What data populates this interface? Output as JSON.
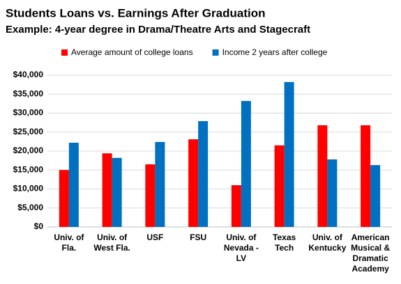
{
  "chart_data": {
    "type": "bar",
    "title": "Students Loans vs. Earnings After Graduation",
    "subtitle": "Example: 4-year degree in Drama/Theatre Arts and Stagecraft",
    "categories": [
      "Univ. of Fla.",
      "Univ. of West Fla.",
      "USF",
      "FSU",
      "Univ. of Nevada - LV",
      "Texas Tech",
      "Univ. of Kentucky",
      "American Musical & Dramatic Academy"
    ],
    "series": [
      {
        "name": "Average amount of college loans",
        "color": "#ff0000",
        "values": [
          15000,
          19400,
          16500,
          23100,
          11000,
          21500,
          26800,
          26800
        ]
      },
      {
        "name": "Income 2 years after college",
        "color": "#0070c0",
        "values": [
          22200,
          18200,
          22400,
          27900,
          33200,
          38200,
          17800,
          16300
        ]
      }
    ],
    "ylim": [
      0,
      40000
    ],
    "yticks": [
      {
        "value": 0,
        "label": "$0"
      },
      {
        "value": 5000,
        "label": "$5,000"
      },
      {
        "value": 10000,
        "label": "$10,000"
      },
      {
        "value": 15000,
        "label": "$15,000"
      },
      {
        "value": 20000,
        "label": "$20,000"
      },
      {
        "value": 25000,
        "label": "$25,000"
      },
      {
        "value": 30000,
        "label": "$30,000"
      },
      {
        "value": 35000,
        "label": "$35,000"
      },
      {
        "value": 40000,
        "label": "$40,000"
      }
    ],
    "grid": true,
    "legend": "top"
  }
}
